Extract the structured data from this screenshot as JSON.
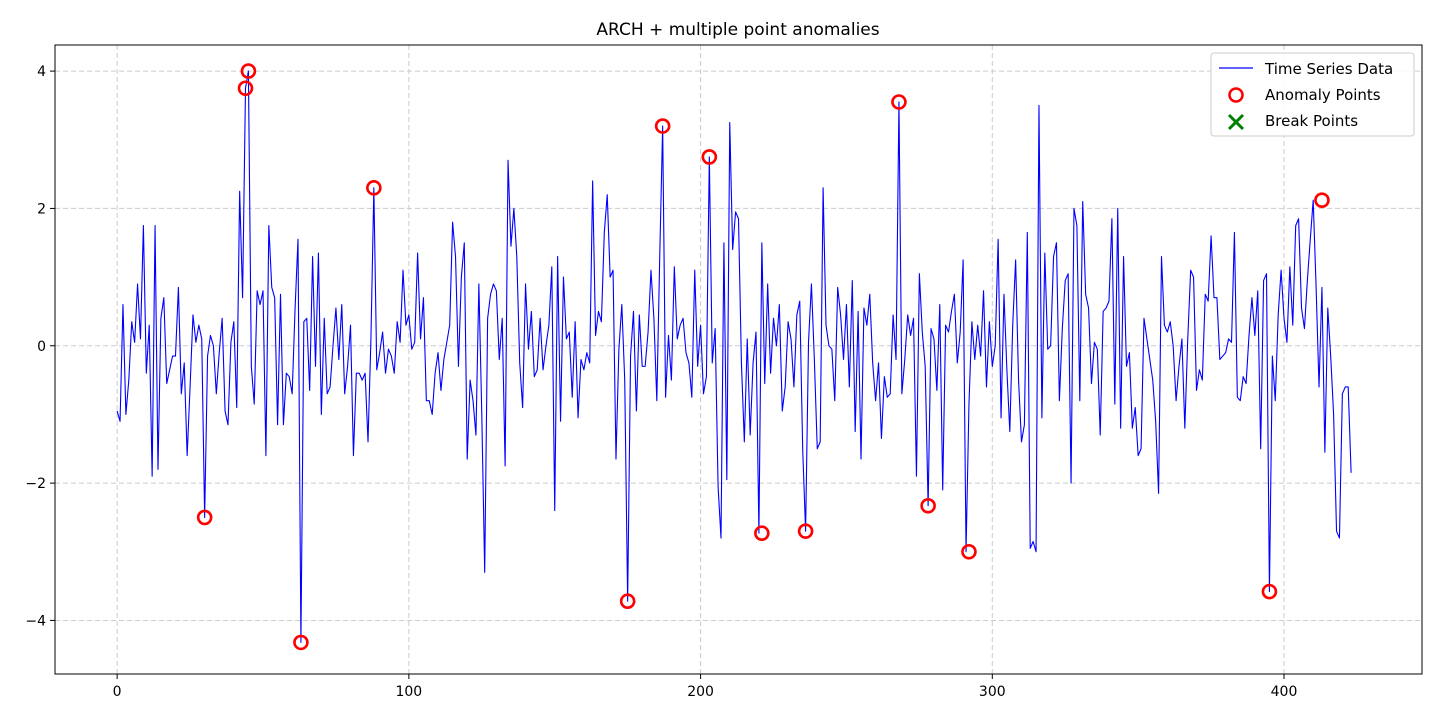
{
  "chart_data": {
    "type": "line",
    "title": "ARCH + multiple point anomalies",
    "xlabel": "",
    "ylabel": "",
    "xlim": [
      -21.3,
      447.3
    ],
    "ylim": [
      -4.78,
      4.38
    ],
    "xticks": [
      0,
      100,
      200,
      300,
      400
    ],
    "yticks": [
      -4,
      -2,
      0,
      2,
      4
    ],
    "xtick_labels": [
      "0",
      "100",
      "200",
      "300",
      "400"
    ],
    "ytick_labels": [
      "−4",
      "−2",
      "0",
      "2",
      "4"
    ],
    "grid": true,
    "legend_position": "top-right",
    "colors": {
      "line": "#0000ff",
      "anomaly": "#ff0000",
      "break": "#008000",
      "grid": "#cccccc"
    },
    "legend": [
      {
        "label": "Time Series Data",
        "marker": "line",
        "color": "#0000ff"
      },
      {
        "label": "Anomaly Points",
        "marker": "circle",
        "color": "#ff0000"
      },
      {
        "label": "Break Points",
        "marker": "x",
        "color": "#008000"
      }
    ],
    "series": [
      {
        "name": "Time Series Data",
        "x_start": 0,
        "values": [
          -0.95,
          -1.1,
          0.6,
          -1.0,
          -0.5,
          0.35,
          0.05,
          0.9,
          0.1,
          1.75,
          -0.4,
          0.3,
          -1.9,
          1.75,
          -1.8,
          0.4,
          0.7,
          -0.55,
          -0.35,
          -0.15,
          -0.15,
          0.85,
          -0.7,
          -0.25,
          -1.6,
          -0.6,
          0.45,
          0.05,
          0.3,
          0.1,
          -2.5,
          -0.15,
          0.15,
          0.0,
          -0.7,
          -0.1,
          0.4,
          -0.95,
          -1.15,
          0.05,
          0.35,
          -0.9,
          2.25,
          0.7,
          3.75,
          4.0,
          -0.3,
          -0.85,
          0.8,
          0.6,
          0.8,
          -1.6,
          1.75,
          0.85,
          0.7,
          -1.15,
          0.75,
          -1.15,
          -0.4,
          -0.45,
          -0.7,
          0.55,
          1.55,
          -4.32,
          0.35,
          0.4,
          -0.65,
          1.3,
          -0.3,
          1.35,
          -1.0,
          0.4,
          -0.7,
          -0.6,
          0.0,
          0.55,
          -0.2,
          0.6,
          -0.7,
          -0.3,
          0.3,
          -1.6,
          -0.4,
          -0.4,
          -0.5,
          -0.4,
          -1.4,
          0.1,
          2.3,
          -0.35,
          -0.1,
          0.2,
          -0.4,
          -0.05,
          -0.15,
          -0.4,
          0.35,
          0.05,
          1.1,
          0.3,
          0.45,
          -0.05,
          0.05,
          1.35,
          0.1,
          0.7,
          -0.8,
          -0.8,
          -1.0,
          -0.4,
          -0.1,
          -0.65,
          -0.2,
          0.05,
          0.3,
          1.8,
          1.3,
          -0.3,
          1.0,
          1.5,
          -1.65,
          -0.5,
          -0.8,
          -1.3,
          0.9,
          -1.0,
          -3.3,
          0.4,
          0.75,
          0.9,
          0.8,
          -0.2,
          0.4,
          -1.75,
          2.7,
          1.45,
          2.0,
          1.3,
          -0.25,
          -0.9,
          0.9,
          -0.05,
          0.5,
          -0.45,
          -0.35,
          0.4,
          -0.35,
          0.0,
          0.3,
          1.15,
          -2.4,
          1.3,
          -1.1,
          1.0,
          0.1,
          0.2,
          -0.75,
          0.35,
          -1.05,
          -0.2,
          -0.35,
          -0.1,
          -0.25,
          2.4,
          0.15,
          0.5,
          0.35,
          1.65,
          2.2,
          1.0,
          1.1,
          -1.65,
          -0.05,
          0.6,
          -0.5,
          -3.72,
          -0.15,
          0.5,
          -0.95,
          0.45,
          -0.3,
          -0.3,
          0.2,
          1.1,
          0.4,
          -0.8,
          1.3,
          3.2,
          -0.75,
          0.15,
          -0.5,
          1.15,
          0.1,
          0.3,
          0.4,
          -0.1,
          -0.25,
          -0.75,
          1.1,
          -0.3,
          0.3,
          -0.7,
          -0.45,
          2.75,
          -0.25,
          0.25,
          -2.05,
          -2.8,
          1.5,
          -1.95,
          3.25,
          1.4,
          1.95,
          1.85,
          -0.25,
          -1.4,
          0.1,
          -1.3,
          -0.25,
          0.2,
          -2.73,
          1.5,
          -0.55,
          0.9,
          -0.4,
          0.4,
          0.0,
          0.6,
          -0.95,
          -0.6,
          0.35,
          0.1,
          -0.6,
          0.45,
          0.65,
          -1.5,
          -2.7,
          0.05,
          0.9,
          -0.2,
          -1.5,
          -1.4,
          2.3,
          0.3,
          0.0,
          -0.05,
          -0.8,
          0.85,
          0.45,
          -0.2,
          0.6,
          -0.6,
          0.95,
          -1.25,
          0.5,
          -1.65,
          0.55,
          0.3,
          0.75,
          -0.25,
          -0.8,
          -0.25,
          -1.35,
          -0.45,
          -0.75,
          -0.7,
          0.45,
          -0.2,
          3.55,
          -0.7,
          -0.2,
          0.45,
          0.15,
          0.4,
          -1.9,
          1.05,
          0.2,
          -0.3,
          -2.33,
          0.25,
          0.1,
          -0.65,
          0.6,
          -2.1,
          0.3,
          0.2,
          0.5,
          0.75,
          -0.25,
          0.2,
          1.25,
          -3.0,
          -0.85,
          0.35,
          -0.2,
          0.3,
          -0.15,
          0.8,
          -0.6,
          0.35,
          -0.3,
          0.0,
          1.55,
          -1.05,
          0.75,
          -0.35,
          -1.25,
          0.3,
          1.25,
          -0.5,
          -1.4,
          -1.15,
          1.65,
          -2.95,
          -2.85,
          -3.0,
          3.5,
          -1.05,
          1.35,
          -0.05,
          0.0,
          1.3,
          1.5,
          -0.8,
          0.25,
          0.95,
          1.05,
          -2.0,
          2.0,
          1.75,
          -0.8,
          2.1,
          0.75,
          0.55,
          -0.55,
          0.05,
          -0.05,
          -1.3,
          0.5,
          0.55,
          0.65,
          1.85,
          -0.85,
          2.0,
          -1.2,
          1.3,
          -0.3,
          -0.1,
          -1.2,
          -0.9,
          -1.6,
          -1.5,
          0.4,
          0.1,
          -0.2,
          -0.5,
          -1.1,
          -2.15,
          1.3,
          0.3,
          0.2,
          0.35,
          0.0,
          -0.8,
          -0.3,
          0.1,
          -1.2,
          0.1,
          1.1,
          1.0,
          -0.65,
          -0.35,
          -0.5,
          0.75,
          0.65,
          1.6,
          0.7,
          0.7,
          -0.2,
          -0.15,
          -0.1,
          0.1,
          0.05,
          1.65,
          -0.75,
          -0.8,
          -0.45,
          -0.55,
          0.15,
          0.7,
          0.15,
          0.8,
          -1.5,
          0.95,
          1.05,
          -3.58,
          -0.15,
          -0.8,
          0.45,
          1.1,
          0.4,
          0.05,
          1.15,
          0.3,
          1.75,
          1.85,
          0.55,
          0.25,
          0.95,
          1.55,
          2.12,
          0.85,
          -0.6,
          0.85,
          -1.55,
          0.55,
          -0.15,
          -1.0,
          -2.7,
          -2.8,
          -0.7,
          -0.6,
          -0.6,
          -1.85
        ]
      }
    ],
    "anomalies": {
      "name": "Anomaly Points",
      "x": [
        30,
        44,
        45,
        63,
        88,
        175,
        187,
        203,
        221,
        236,
        268,
        278,
        292,
        395,
        413
      ],
      "y": [
        -2.5,
        3.75,
        4.0,
        -4.32,
        2.3,
        -3.72,
        3.2,
        2.75,
        -2.73,
        -2.7,
        3.55,
        -2.33,
        -3.0,
        -3.58,
        2.12
      ]
    },
    "breaks": {
      "name": "Break Points",
      "x": [],
      "y": []
    }
  }
}
